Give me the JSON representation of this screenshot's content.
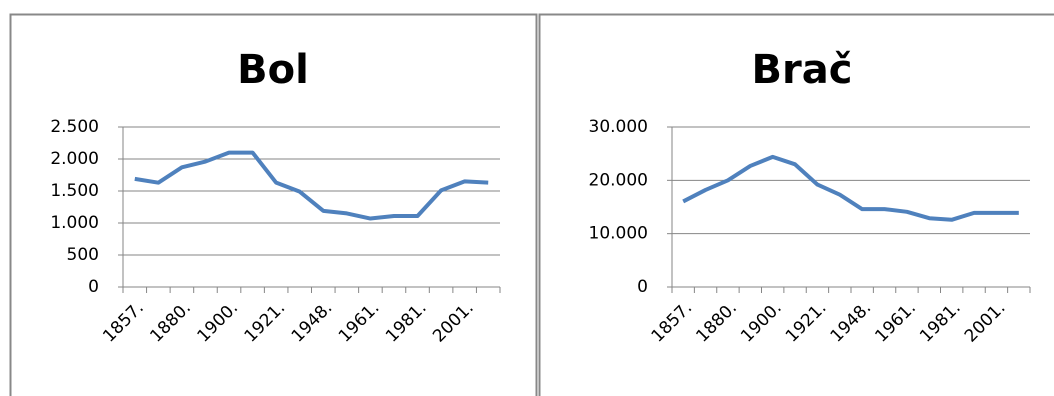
{
  "chart_data": [
    {
      "type": "line",
      "title": "Bol",
      "categories": [
        "1857.",
        null,
        "1880.",
        null,
        "1900.",
        null,
        "1921.",
        null,
        "1948.",
        null,
        "1961.",
        null,
        "1981.",
        null,
        "2001.",
        null
      ],
      "series": [
        {
          "color": "#4f81bd",
          "values": [
            1690,
            1630,
            1870,
            1960,
            2100,
            2100,
            1630,
            1490,
            1190,
            1150,
            1070,
            1110,
            1110,
            1510,
            1650,
            1630
          ]
        }
      ],
      "ylim": [
        0,
        2500
      ],
      "yticks": [
        0,
        500,
        {
          "value": 1000,
          "label": "1.000"
        },
        {
          "value": 1500,
          "label": "1.500"
        },
        {
          "value": 2000,
          "label": "2.000"
        },
        {
          "value": 2500,
          "label": "2.500"
        }
      ],
      "grid": true
    },
    {
      "type": "line",
      "title": "Brač",
      "categories": [
        "1857.",
        null,
        "1880.",
        null,
        "1900.",
        null,
        "1921.",
        null,
        "1948.",
        null,
        "1961.",
        null,
        "1981.",
        null,
        "2001.",
        null
      ],
      "series": [
        {
          "color": "#4f81bd",
          "values": [
            16040,
            18200,
            20000,
            22700,
            24400,
            23000,
            19200,
            17300,
            14600,
            14600,
            14100,
            12900,
            12600,
            13900,
            13900,
            13900
          ]
        }
      ],
      "ylim": [
        0,
        30000
      ],
      "yticks": [
        0,
        {
          "value": 10000,
          "label": "10.000"
        },
        {
          "value": 20000,
          "label": "20.000"
        },
        {
          "value": 30000,
          "label": "30.000"
        }
      ],
      "grid": true
    }
  ]
}
